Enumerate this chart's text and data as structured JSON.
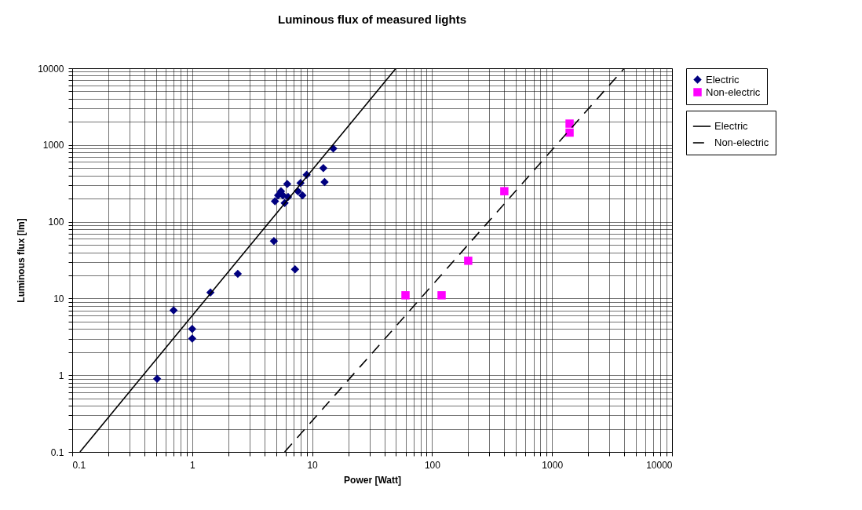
{
  "chart_data": {
    "type": "scatter",
    "title": "Luminous flux of measured lights",
    "xlabel": "Power [Watt]",
    "ylabel": "Luminous flux [lm]",
    "log": "xy",
    "grid": true,
    "legend": "right",
    "xlim": [
      0.1,
      10000
    ],
    "xticks": [
      0.1,
      1,
      10,
      100,
      1000,
      10000
    ],
    "ylim": [
      0.1,
      10000
    ],
    "yticks": [
      0.1,
      1,
      10,
      100,
      1000,
      10000
    ],
    "series": [
      {
        "name": "Electric",
        "marker": "diamond",
        "color": "#000080",
        "x": [
          0.51,
          0.7,
          1,
          1,
          1.42,
          2.4,
          4.8,
          7.2,
          15,
          12.4,
          12.7,
          9,
          8,
          8.3,
          7.6,
          6.2,
          5.5,
          4.9,
          5.9,
          5.7,
          5.2,
          6.3
        ],
        "values": [
          0.9,
          7,
          4,
          3,
          12,
          21,
          56,
          24,
          900,
          500,
          330,
          410,
          320,
          220,
          250,
          310,
          250,
          185,
          175,
          220,
          220,
          210
        ]
      },
      {
        "name": "Non-electric",
        "marker": "square",
        "color": "#ff00ff",
        "x": [
          60,
          120,
          200,
          400,
          1400,
          1400
        ],
        "values": [
          11,
          11,
          31,
          250,
          1900,
          1450
        ]
      },
      {
        "name": "Electric",
        "type": "line",
        "line_style": "solid",
        "color": "#000000",
        "x": [
          0.116,
          50
        ],
        "values": [
          0.1,
          10000
        ]
      },
      {
        "name": "Non-electric",
        "type": "line",
        "line_style": "dashed",
        "color": "#000000",
        "x": [
          5.9,
          4000
        ],
        "values": [
          0.1,
          10000
        ]
      }
    ]
  }
}
